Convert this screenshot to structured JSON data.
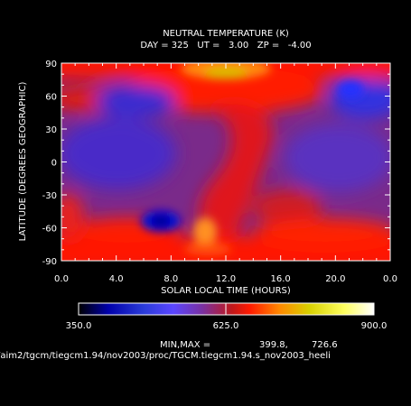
{
  "chart_data": {
    "type": "heatmap",
    "title": "NEUTRAL TEMPERATURE (K)",
    "subtitle": "DAY = 325   UT =   3.00   ZP =   -4.00",
    "xlabel": "SOLAR LOCAL TIME (HOURS)",
    "ylabel": "LATITUDE (DEGREES GEOGRAPHIC)",
    "xlim": [
      0,
      24
    ],
    "ylim": [
      -90,
      90
    ],
    "x_ticks": [
      "0.0",
      "4.0",
      "8.0",
      "12.0",
      "16.0",
      "20.0",
      "0.0"
    ],
    "y_ticks": [
      "90",
      "60",
      "30",
      "0",
      "-30",
      "-60",
      "-90"
    ],
    "colorbar": {
      "min": 350.0,
      "max": 900.0,
      "labels": [
        "350.0",
        "625.0",
        "900.0"
      ],
      "stops": [
        "#000000",
        "#0000aa",
        "#2a3bd8",
        "#5a46ff",
        "#7a30a0",
        "#c0181a",
        "#ff1a00",
        "#ff8800",
        "#d8d000",
        "#ffff60",
        "#ffffff"
      ]
    },
    "minmax_label": "MIN,MAX =",
    "min_value": "399.8,",
    "max_value": "726.6",
    "field_colors": {
      "cold": "#2828c8",
      "mid": "#8a2a90",
      "warm": "#ff0c00",
      "hot": "#ff9018",
      "hottest": "#d8c800"
    },
    "footer_path": "/aim2/tgcm/tiegcm1.94/nov2003/proc/TGCM.tiegcm1.94.s_nov2003_heeli"
  }
}
